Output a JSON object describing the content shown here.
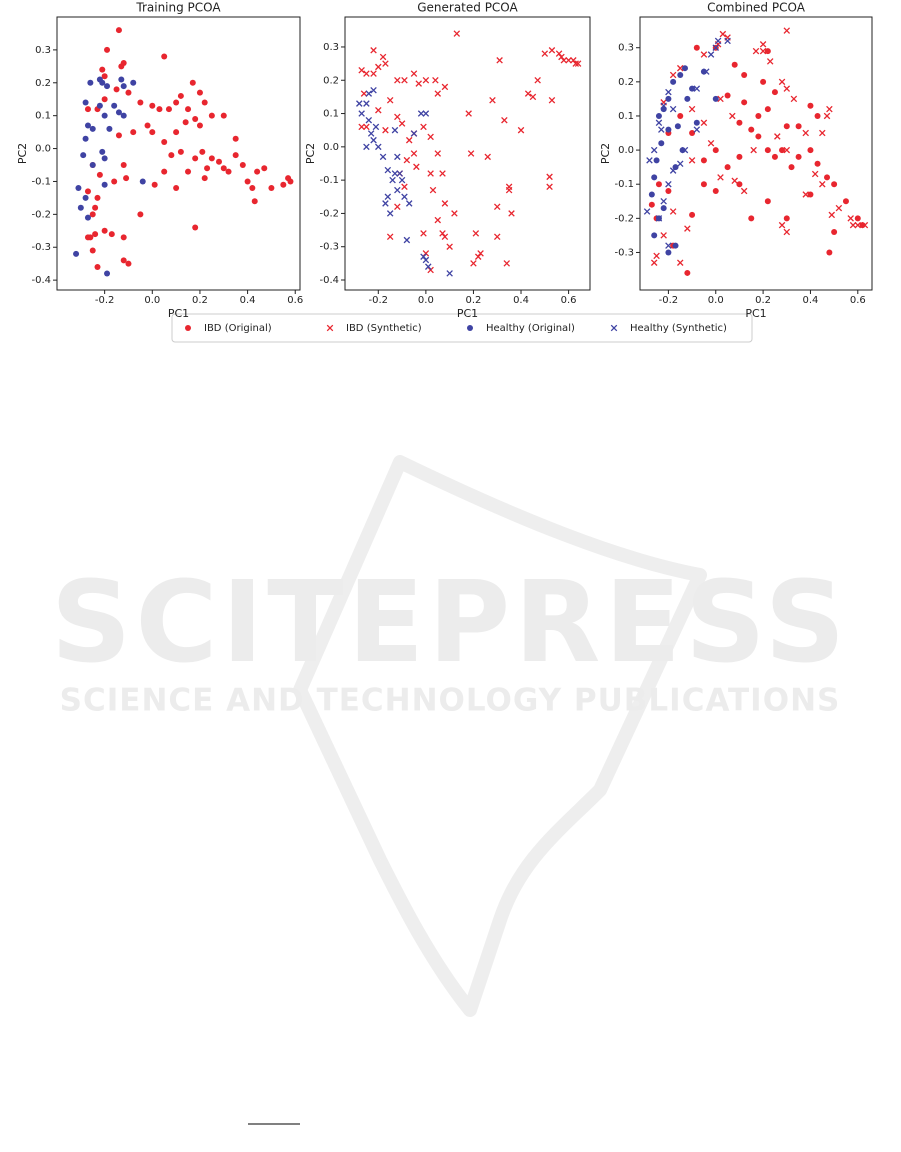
{
  "chart_data": [
    {
      "type": "scatter",
      "title": "Training PCOA",
      "x_label": "PC1",
      "y_label": "PC2",
      "xlim": [
        -0.4,
        0.62
      ],
      "ylim": [
        -0.43,
        0.4
      ],
      "xticks": [
        -0.2,
        {
          "value": 0,
          "label": "0.0"
        },
        0.2,
        0.4,
        0.6
      ],
      "yticks": [
        -0.4,
        -0.3,
        -0.2,
        -0.1,
        {
          "value": 0,
          "label": "0.0"
        },
        0.1,
        0.2,
        0.3
      ],
      "series": [
        {
          "name": "IBD (Original)",
          "color": "#e8262f",
          "marker": "o",
          "x": [
            -0.14,
            -0.19,
            0.05,
            -0.21,
            -0.12,
            -0.13,
            -0.2,
            -0.27,
            -0.23,
            -0.2,
            -0.15,
            -0.1,
            -0.05,
            0.0,
            0.03,
            0.07,
            0.1,
            0.12,
            0.15,
            0.17,
            0.2,
            0.22,
            0.25,
            0.18,
            0.2,
            0.14,
            0.1,
            0.05,
            0.0,
            -0.02,
            -0.08,
            -0.14,
            -0.12,
            -0.11,
            -0.16,
            -0.22,
            -0.25,
            -0.27,
            -0.23,
            -0.24,
            -0.25,
            -0.26,
            -0.24,
            -0.27,
            -0.25,
            -0.23,
            -0.17,
            -0.12,
            -0.1,
            -0.12,
            -0.2,
            0.01,
            -0.05,
            0.05,
            0.08,
            0.12,
            0.15,
            0.18,
            0.21,
            0.23,
            0.25,
            0.28,
            0.3,
            0.32,
            0.35,
            0.38,
            0.4,
            0.42,
            0.44,
            0.47,
            0.43,
            0.5,
            0.55,
            0.57,
            0.58,
            0.18,
            0.1,
            0.22,
            0.3,
            0.35
          ],
          "values": [
            0.36,
            0.3,
            0.28,
            0.24,
            0.26,
            0.25,
            0.22,
            0.12,
            0.12,
            0.15,
            0.18,
            0.17,
            0.14,
            0.13,
            0.12,
            0.12,
            0.14,
            0.16,
            0.12,
            0.2,
            0.17,
            0.14,
            0.1,
            0.09,
            0.07,
            0.08,
            0.05,
            0.02,
            0.05,
            0.07,
            0.05,
            0.04,
            -0.05,
            -0.09,
            -0.1,
            -0.08,
            -0.05,
            -0.13,
            -0.15,
            -0.18,
            -0.2,
            -0.27,
            -0.26,
            -0.27,
            -0.31,
            -0.36,
            -0.26,
            -0.27,
            -0.35,
            -0.34,
            -0.25,
            -0.11,
            -0.2,
            -0.07,
            -0.02,
            -0.01,
            -0.07,
            -0.03,
            -0.01,
            -0.06,
            -0.03,
            -0.04,
            -0.06,
            -0.07,
            -0.02,
            -0.05,
            -0.1,
            -0.12,
            -0.07,
            -0.06,
            -0.16,
            -0.12,
            -0.11,
            -0.09,
            -0.1,
            -0.24,
            -0.12,
            -0.09,
            0.1,
            0.03
          ]
        },
        {
          "name": "Healthy (Original)",
          "color": "#3f43a3",
          "marker": "o",
          "x": [
            -0.22,
            -0.21,
            -0.19,
            -0.13,
            -0.12,
            -0.08,
            -0.28,
            -0.26,
            -0.27,
            -0.25,
            -0.22,
            -0.2,
            -0.18,
            -0.14,
            -0.12,
            -0.16,
            -0.28,
            -0.29,
            -0.25,
            -0.21,
            -0.2,
            -0.2,
            -0.31,
            -0.28,
            -0.3,
            -0.27,
            -0.32,
            -0.19,
            -0.04
          ],
          "values": [
            0.21,
            0.2,
            0.19,
            0.21,
            0.19,
            0.2,
            0.14,
            0.2,
            0.07,
            0.06,
            0.13,
            0.1,
            0.06,
            0.11,
            0.1,
            0.13,
            0.03,
            -0.02,
            -0.05,
            -0.01,
            -0.03,
            -0.11,
            -0.12,
            -0.15,
            -0.18,
            -0.21,
            -0.32,
            -0.38,
            -0.1
          ]
        }
      ]
    },
    {
      "type": "scatter",
      "title": "Generated PCOA",
      "x_label": "PC1",
      "y_label": "PC2",
      "xlim": [
        -0.34,
        0.69
      ],
      "ylim": [
        -0.43,
        0.39
      ],
      "xticks": [
        -0.2,
        {
          "value": 0,
          "label": "0.0"
        },
        0.2,
        0.4,
        0.6
      ],
      "yticks": [
        -0.4,
        -0.3,
        -0.2,
        -0.1,
        {
          "value": 0,
          "label": "0.0"
        },
        0.1,
        0.2,
        0.3
      ],
      "series": [
        {
          "name": "IBD (Synthetic)",
          "color": "#e8262f",
          "marker": "x",
          "x": [
            0.13,
            0.53,
            0.5,
            0.57,
            0.58,
            0.6,
            0.62,
            0.63,
            0.64,
            0.56,
            -0.22,
            -0.18,
            -0.17,
            -0.27,
            -0.25,
            -0.22,
            -0.2,
            -0.09,
            -0.05,
            -0.03,
            0.0,
            0.04,
            0.08,
            0.05,
            -0.12,
            -0.15,
            -0.26,
            -0.27,
            -0.25,
            -0.2,
            -0.17,
            -0.12,
            -0.1,
            -0.07,
            -0.05,
            -0.01,
            0.02,
            0.05,
            -0.05,
            -0.08,
            -0.11,
            -0.09,
            -0.12,
            -0.04,
            0.02,
            0.03,
            0.07,
            0.08,
            0.05,
            0.07,
            0.08,
            0.1,
            0.12,
            -0.01,
            0.0,
            0.02,
            -0.15,
            0.21,
            0.2,
            0.22,
            0.23,
            0.3,
            0.3,
            0.35,
            0.36,
            0.34,
            0.33,
            0.31,
            0.4,
            0.43,
            0.45,
            0.47,
            0.26,
            0.18,
            0.19,
            0.52,
            0.52,
            0.35,
            0.53,
            0.28
          ],
          "values": [
            0.34,
            0.29,
            0.28,
            0.27,
            0.26,
            0.26,
            0.26,
            0.25,
            0.25,
            0.28,
            0.29,
            0.27,
            0.25,
            0.23,
            0.22,
            0.22,
            0.24,
            0.2,
            0.22,
            0.19,
            0.2,
            0.2,
            0.18,
            0.16,
            0.2,
            0.14,
            0.16,
            0.06,
            0.06,
            0.11,
            0.05,
            0.09,
            0.07,
            0.02,
            0.04,
            0.06,
            0.03,
            -0.02,
            -0.02,
            -0.04,
            -0.08,
            -0.12,
            -0.18,
            -0.06,
            -0.08,
            -0.13,
            -0.08,
            -0.17,
            -0.22,
            -0.26,
            -0.27,
            -0.3,
            -0.2,
            -0.26,
            -0.32,
            -0.37,
            -0.27,
            -0.26,
            -0.35,
            -0.33,
            -0.32,
            -0.27,
            -0.18,
            -0.13,
            -0.2,
            -0.35,
            0.08,
            0.26,
            0.05,
            0.16,
            0.15,
            0.2,
            -0.03,
            0.1,
            -0.02,
            -0.09,
            -0.12,
            -0.12,
            0.14,
            0.14
          ]
        },
        {
          "name": "Healthy (Synthetic)",
          "color": "#3f43a3",
          "marker": "x",
          "x": [
            -0.28,
            -0.27,
            -0.25,
            -0.24,
            -0.22,
            -0.24,
            -0.21,
            -0.23,
            -0.25,
            -0.22,
            -0.2,
            -0.18,
            -0.16,
            -0.14,
            -0.12,
            -0.11,
            -0.1,
            -0.09,
            -0.16,
            -0.17,
            -0.15,
            -0.13,
            -0.12,
            -0.07,
            -0.05,
            -0.08,
            -0.01,
            0.0,
            0.1,
            0.01,
            -0.02,
            0.0,
            -0.13
          ],
          "values": [
            0.13,
            0.1,
            0.13,
            0.16,
            0.17,
            0.08,
            0.06,
            0.04,
            0.0,
            0.02,
            0.0,
            -0.03,
            -0.07,
            -0.1,
            -0.03,
            -0.08,
            -0.1,
            -0.15,
            -0.15,
            -0.17,
            -0.2,
            -0.08,
            -0.13,
            -0.17,
            0.04,
            -0.28,
            -0.33,
            -0.34,
            -0.38,
            -0.36,
            0.1,
            0.1,
            0.05
          ]
        }
      ]
    },
    {
      "type": "scatter",
      "title": "Combined PCOA",
      "x_label": "PC1",
      "y_label": "PC2",
      "xlim": [
        -0.32,
        0.66
      ],
      "ylim": [
        -0.41,
        0.39
      ],
      "xticks": [
        -0.2,
        {
          "value": 0,
          "label": "0.0"
        },
        0.2,
        0.4,
        0.6
      ],
      "yticks": [
        -0.3,
        -0.2,
        -0.1,
        {
          "value": 0,
          "label": "0.0"
        },
        0.1,
        0.2,
        0.3
      ],
      "series": [
        {
          "name": "IBD (Original)",
          "color": "#e8262f",
          "marker": "o",
          "x": [
            -0.08,
            0.0,
            0.08,
            0.22,
            0.12,
            0.2,
            0.25,
            0.05,
            0.12,
            0.18,
            0.22,
            0.1,
            0.15,
            0.18,
            0.22,
            0.25,
            0.28,
            0.32,
            0.35,
            0.4,
            0.43,
            0.47,
            0.5,
            0.55,
            0.6,
            0.62,
            0.5,
            0.48,
            0.4,
            0.3,
            0.22,
            0.15,
            0.1,
            0.05,
            0.0,
            -0.05,
            -0.1,
            -0.15,
            -0.2,
            -0.25,
            -0.2,
            -0.18,
            -0.12,
            -0.1,
            -0.05,
            0.0,
            0.35,
            0.4,
            0.43,
            0.3,
            -0.27,
            -0.24,
            0.1
          ],
          "values": [
            0.3,
            0.3,
            0.25,
            0.29,
            0.22,
            0.2,
            0.17,
            0.16,
            0.14,
            0.1,
            0.12,
            0.08,
            0.06,
            0.04,
            0.0,
            -0.02,
            0.0,
            -0.05,
            -0.02,
            0.0,
            -0.04,
            -0.08,
            -0.1,
            -0.15,
            -0.2,
            -0.22,
            -0.24,
            -0.3,
            -0.13,
            -0.2,
            -0.15,
            -0.2,
            -0.1,
            -0.05,
            0.0,
            -0.03,
            0.05,
            0.1,
            0.05,
            -0.2,
            -0.12,
            -0.28,
            -0.36,
            -0.19,
            -0.1,
            -0.12,
            0.07,
            0.13,
            0.1,
            0.07,
            -0.16,
            -0.1,
            -0.02
          ]
        },
        {
          "name": "IBD (Synthetic)",
          "color": "#e8262f",
          "marker": "x",
          "x": [
            0.3,
            0.2,
            0.2,
            0.17,
            0.23,
            0.03,
            0.05,
            0.01,
            -0.05,
            0.28,
            0.3,
            0.33,
            0.48,
            0.47,
            0.45,
            0.38,
            0.3,
            0.42,
            0.45,
            0.52,
            0.57,
            0.6,
            0.63,
            0.58,
            0.28,
            0.3,
            0.12,
            0.02,
            -0.02,
            -0.05,
            -0.1,
            0.02,
            -0.18,
            -0.15,
            -0.22,
            -0.26,
            -0.25,
            -0.22,
            -0.15,
            -0.12,
            -0.18,
            -0.1,
            0.07,
            0.16,
            0.26,
            0.38,
            0.49,
            0.08
          ],
          "values": [
            0.35,
            0.31,
            0.29,
            0.29,
            0.26,
            0.34,
            0.33,
            0.31,
            0.28,
            0.2,
            0.18,
            0.15,
            0.12,
            0.1,
            0.05,
            0.05,
            0.0,
            -0.07,
            -0.1,
            -0.17,
            -0.2,
            -0.22,
            -0.22,
            -0.22,
            -0.22,
            -0.24,
            -0.12,
            -0.08,
            0.02,
            0.08,
            0.12,
            0.15,
            0.22,
            0.24,
            0.14,
            -0.33,
            -0.31,
            -0.25,
            -0.33,
            -0.23,
            -0.18,
            -0.03,
            0.1,
            0.0,
            0.04,
            -0.13,
            -0.19,
            -0.09
          ]
        },
        {
          "name": "Healthy (Original)",
          "color": "#3f43a3",
          "marker": "o",
          "x": [
            -0.24,
            -0.22,
            -0.2,
            -0.18,
            -0.15,
            -0.13,
            -0.16,
            -0.2,
            -0.23,
            -0.25,
            -0.27,
            -0.24,
            -0.26,
            -0.2,
            -0.22,
            -0.12,
            -0.1,
            -0.05,
            0.0,
            -0.08,
            -0.17,
            -0.14,
            -0.26,
            -0.17
          ],
          "values": [
            0.1,
            0.12,
            0.15,
            0.2,
            0.22,
            0.24,
            0.07,
            0.06,
            0.02,
            -0.03,
            -0.13,
            -0.2,
            -0.25,
            -0.3,
            -0.17,
            0.15,
            0.18,
            0.23,
            0.15,
            0.08,
            -0.05,
            0.0,
            -0.08,
            -0.28
          ]
        },
        {
          "name": "Healthy (Synthetic)",
          "color": "#3f43a3",
          "marker": "x",
          "x": [
            -0.28,
            -0.26,
            -0.24,
            -0.23,
            -0.22,
            -0.2,
            -0.18,
            -0.2,
            -0.22,
            -0.24,
            -0.18,
            -0.15,
            -0.13,
            -0.08,
            -0.08,
            -0.04,
            -0.02,
            0.0,
            0.01,
            0.05,
            -0.29,
            -0.2
          ],
          "values": [
            -0.03,
            0.0,
            0.08,
            0.06,
            0.13,
            0.17,
            0.12,
            -0.1,
            -0.15,
            -0.2,
            -0.06,
            -0.04,
            0.0,
            0.06,
            0.18,
            0.23,
            0.28,
            0.3,
            0.32,
            0.32,
            -0.18,
            -0.28
          ]
        }
      ]
    }
  ],
  "watermark": {
    "title": "SCITEPRESS",
    "subtitle": "SCIENCE AND TECHNOLOGY PUBLICATIONS"
  }
}
